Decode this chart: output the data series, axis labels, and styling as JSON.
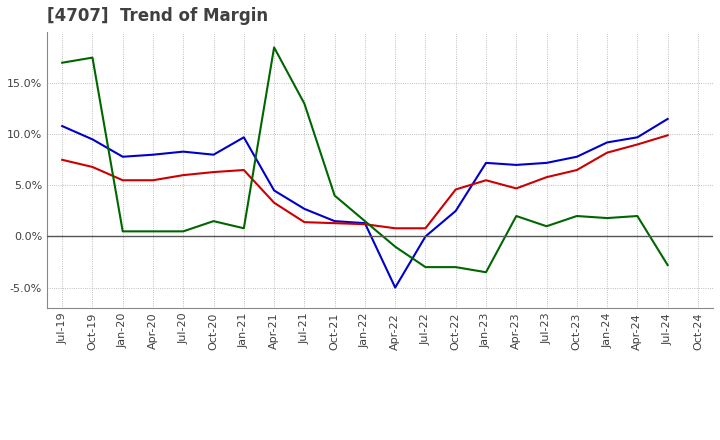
{
  "title": "[4707]  Trend of Margin",
  "title_color": "#404040",
  "background_color": "#ffffff",
  "grid_color": "#aaaaaa",
  "ylim": [
    -0.07,
    0.2
  ],
  "yticks": [
    -0.05,
    0.0,
    0.05,
    0.1,
    0.15
  ],
  "x_labels": [
    "Jul-19",
    "Oct-19",
    "Jan-20",
    "Apr-20",
    "Jul-20",
    "Oct-20",
    "Jan-21",
    "Apr-21",
    "Jul-21",
    "Oct-21",
    "Jan-22",
    "Apr-22",
    "Jul-22",
    "Oct-22",
    "Jan-23",
    "Apr-23",
    "Jul-23",
    "Oct-23",
    "Jan-24",
    "Apr-24",
    "Jul-24",
    "Oct-24"
  ],
  "ordinary_income": [
    0.108,
    0.095,
    0.078,
    0.08,
    0.083,
    0.08,
    0.097,
    0.045,
    0.027,
    0.015,
    0.013,
    -0.05,
    0.0,
    0.025,
    0.072,
    0.07,
    0.072,
    0.078,
    0.092,
    0.097,
    0.115,
    null
  ],
  "net_income": [
    0.075,
    0.068,
    0.055,
    0.055,
    0.06,
    0.063,
    0.065,
    0.033,
    0.014,
    0.013,
    0.012,
    0.008,
    0.008,
    0.046,
    0.055,
    0.047,
    0.058,
    0.065,
    0.082,
    0.09,
    0.099,
    null
  ],
  "operating_cashflow": [
    0.17,
    0.175,
    0.005,
    0.005,
    0.005,
    0.015,
    0.008,
    0.185,
    0.13,
    0.04,
    0.015,
    -0.01,
    -0.03,
    -0.03,
    -0.035,
    0.02,
    0.01,
    0.02,
    0.018,
    0.02,
    -0.028,
    null
  ],
  "line_colors": {
    "ordinary_income": "#0000cc",
    "net_income": "#cc0000",
    "operating_cashflow": "#006600"
  }
}
